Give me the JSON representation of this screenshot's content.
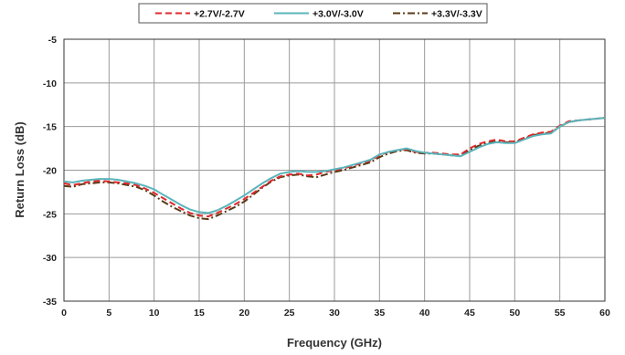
{
  "chart_data": {
    "type": "line",
    "xlabel": "Frequency (GHz)",
    "ylabel": "Return Loss (dB)",
    "xlim": [
      0,
      60
    ],
    "ylim": [
      -35,
      -5
    ],
    "xticks": [
      "0",
      "5",
      "10",
      "15",
      "20",
      "25",
      "30",
      "35",
      "40",
      "45",
      "50",
      "55",
      "60"
    ],
    "yticks": [
      "-5",
      "-10",
      "-15",
      "-20",
      "-25",
      "-30",
      "-35"
    ],
    "grid": true,
    "legend_position": "top",
    "series": [
      {
        "name": "+2.7V/-2.7V",
        "color": "#e0282b",
        "style": "dashed",
        "x": [
          0,
          1,
          2,
          3,
          4,
          5,
          6,
          7,
          8,
          9,
          10,
          11,
          12,
          13,
          14,
          15,
          16,
          17,
          18,
          19,
          20,
          21,
          22,
          23,
          24,
          25,
          26,
          27,
          28,
          29,
          30,
          31,
          32,
          33,
          34,
          35,
          36,
          37,
          38,
          39,
          40,
          41,
          42,
          43,
          44,
          45,
          46,
          47,
          48,
          49,
          50,
          51,
          52,
          53,
          54,
          55,
          56,
          57,
          58,
          59,
          60
        ],
        "y": [
          -21.5,
          -21.7,
          -21.5,
          -21.3,
          -21.2,
          -21.3,
          -21.4,
          -21.5,
          -21.7,
          -22.1,
          -22.6,
          -23.2,
          -23.8,
          -24.4,
          -24.9,
          -25.2,
          -25.3,
          -24.9,
          -24.4,
          -23.9,
          -23.3,
          -22.6,
          -21.9,
          -21.2,
          -20.7,
          -20.5,
          -20.4,
          -20.6,
          -20.5,
          -20.2,
          -20.0,
          -19.8,
          -19.5,
          -19.2,
          -18.9,
          -18.3,
          -17.9,
          -17.7,
          -17.6,
          -17.9,
          -18.0,
          -18.0,
          -18.1,
          -18.2,
          -18.2,
          -17.5,
          -17.0,
          -16.7,
          -16.5,
          -16.7,
          -16.7,
          -16.3,
          -15.9,
          -15.7,
          -15.6,
          -14.9,
          -14.4,
          -14.3,
          -14.2,
          -14.1,
          -14.0
        ]
      },
      {
        "name": "+3.0V/-3.0V",
        "color": "#5ab5bb",
        "style": "solid",
        "x": [
          0,
          1,
          2,
          3,
          4,
          5,
          6,
          7,
          8,
          9,
          10,
          11,
          12,
          13,
          14,
          15,
          16,
          17,
          18,
          19,
          20,
          21,
          22,
          23,
          24,
          25,
          26,
          27,
          28,
          29,
          30,
          31,
          32,
          33,
          34,
          35,
          36,
          37,
          38,
          39,
          40,
          41,
          42,
          43,
          44,
          45,
          46,
          47,
          48,
          49,
          50,
          51,
          52,
          53,
          54,
          55,
          56,
          57,
          58,
          59,
          60
        ],
        "y": [
          -21.3,
          -21.4,
          -21.2,
          -21.1,
          -21.0,
          -21.0,
          -21.1,
          -21.3,
          -21.5,
          -21.8,
          -22.2,
          -22.8,
          -23.4,
          -24.0,
          -24.5,
          -24.8,
          -24.9,
          -24.6,
          -24.1,
          -23.5,
          -22.9,
          -22.2,
          -21.5,
          -20.9,
          -20.4,
          -20.2,
          -20.1,
          -20.2,
          -20.2,
          -20.1,
          -19.9,
          -19.7,
          -19.4,
          -19.1,
          -18.8,
          -18.2,
          -17.9,
          -17.7,
          -17.5,
          -17.8,
          -18.0,
          -18.1,
          -18.2,
          -18.3,
          -18.4,
          -17.9,
          -17.4,
          -17.0,
          -16.8,
          -16.9,
          -16.9,
          -16.5,
          -16.1,
          -15.9,
          -15.8,
          -15.0,
          -14.5,
          -14.3,
          -14.2,
          -14.1,
          -14.0
        ]
      },
      {
        "name": "+3.3V/-3.3V",
        "color": "#5a3a17",
        "style": "dashdot",
        "x": [
          0,
          1,
          2,
          3,
          4,
          5,
          6,
          7,
          8,
          9,
          10,
          11,
          12,
          13,
          14,
          15,
          16,
          17,
          18,
          19,
          20,
          21,
          22,
          23,
          24,
          25,
          26,
          27,
          28,
          29,
          30,
          31,
          32,
          33,
          34,
          35,
          36,
          37,
          38,
          39,
          40,
          41,
          42,
          43,
          44,
          45,
          46,
          47,
          48,
          49,
          50,
          51,
          52,
          53,
          54,
          55,
          56,
          57,
          58,
          59,
          60
        ],
        "y": [
          -21.8,
          -21.9,
          -21.6,
          -21.5,
          -21.4,
          -21.4,
          -21.5,
          -21.7,
          -21.9,
          -22.3,
          -22.9,
          -23.6,
          -24.2,
          -24.7,
          -25.2,
          -25.5,
          -25.6,
          -25.2,
          -24.7,
          -24.2,
          -23.6,
          -22.8,
          -22.0,
          -21.3,
          -20.8,
          -20.6,
          -20.5,
          -20.7,
          -20.8,
          -20.5,
          -20.2,
          -20.0,
          -19.7,
          -19.4,
          -19.1,
          -18.5,
          -18.1,
          -17.8,
          -17.7,
          -18.0,
          -18.1,
          -18.1,
          -18.2,
          -18.3,
          -18.3,
          -17.7,
          -17.2,
          -16.9,
          -16.7,
          -16.8,
          -16.8,
          -16.4,
          -16.0,
          -15.8,
          -15.7,
          -15.0,
          -14.5,
          -14.3,
          -14.2,
          -14.1,
          -14.0
        ]
      }
    ]
  }
}
